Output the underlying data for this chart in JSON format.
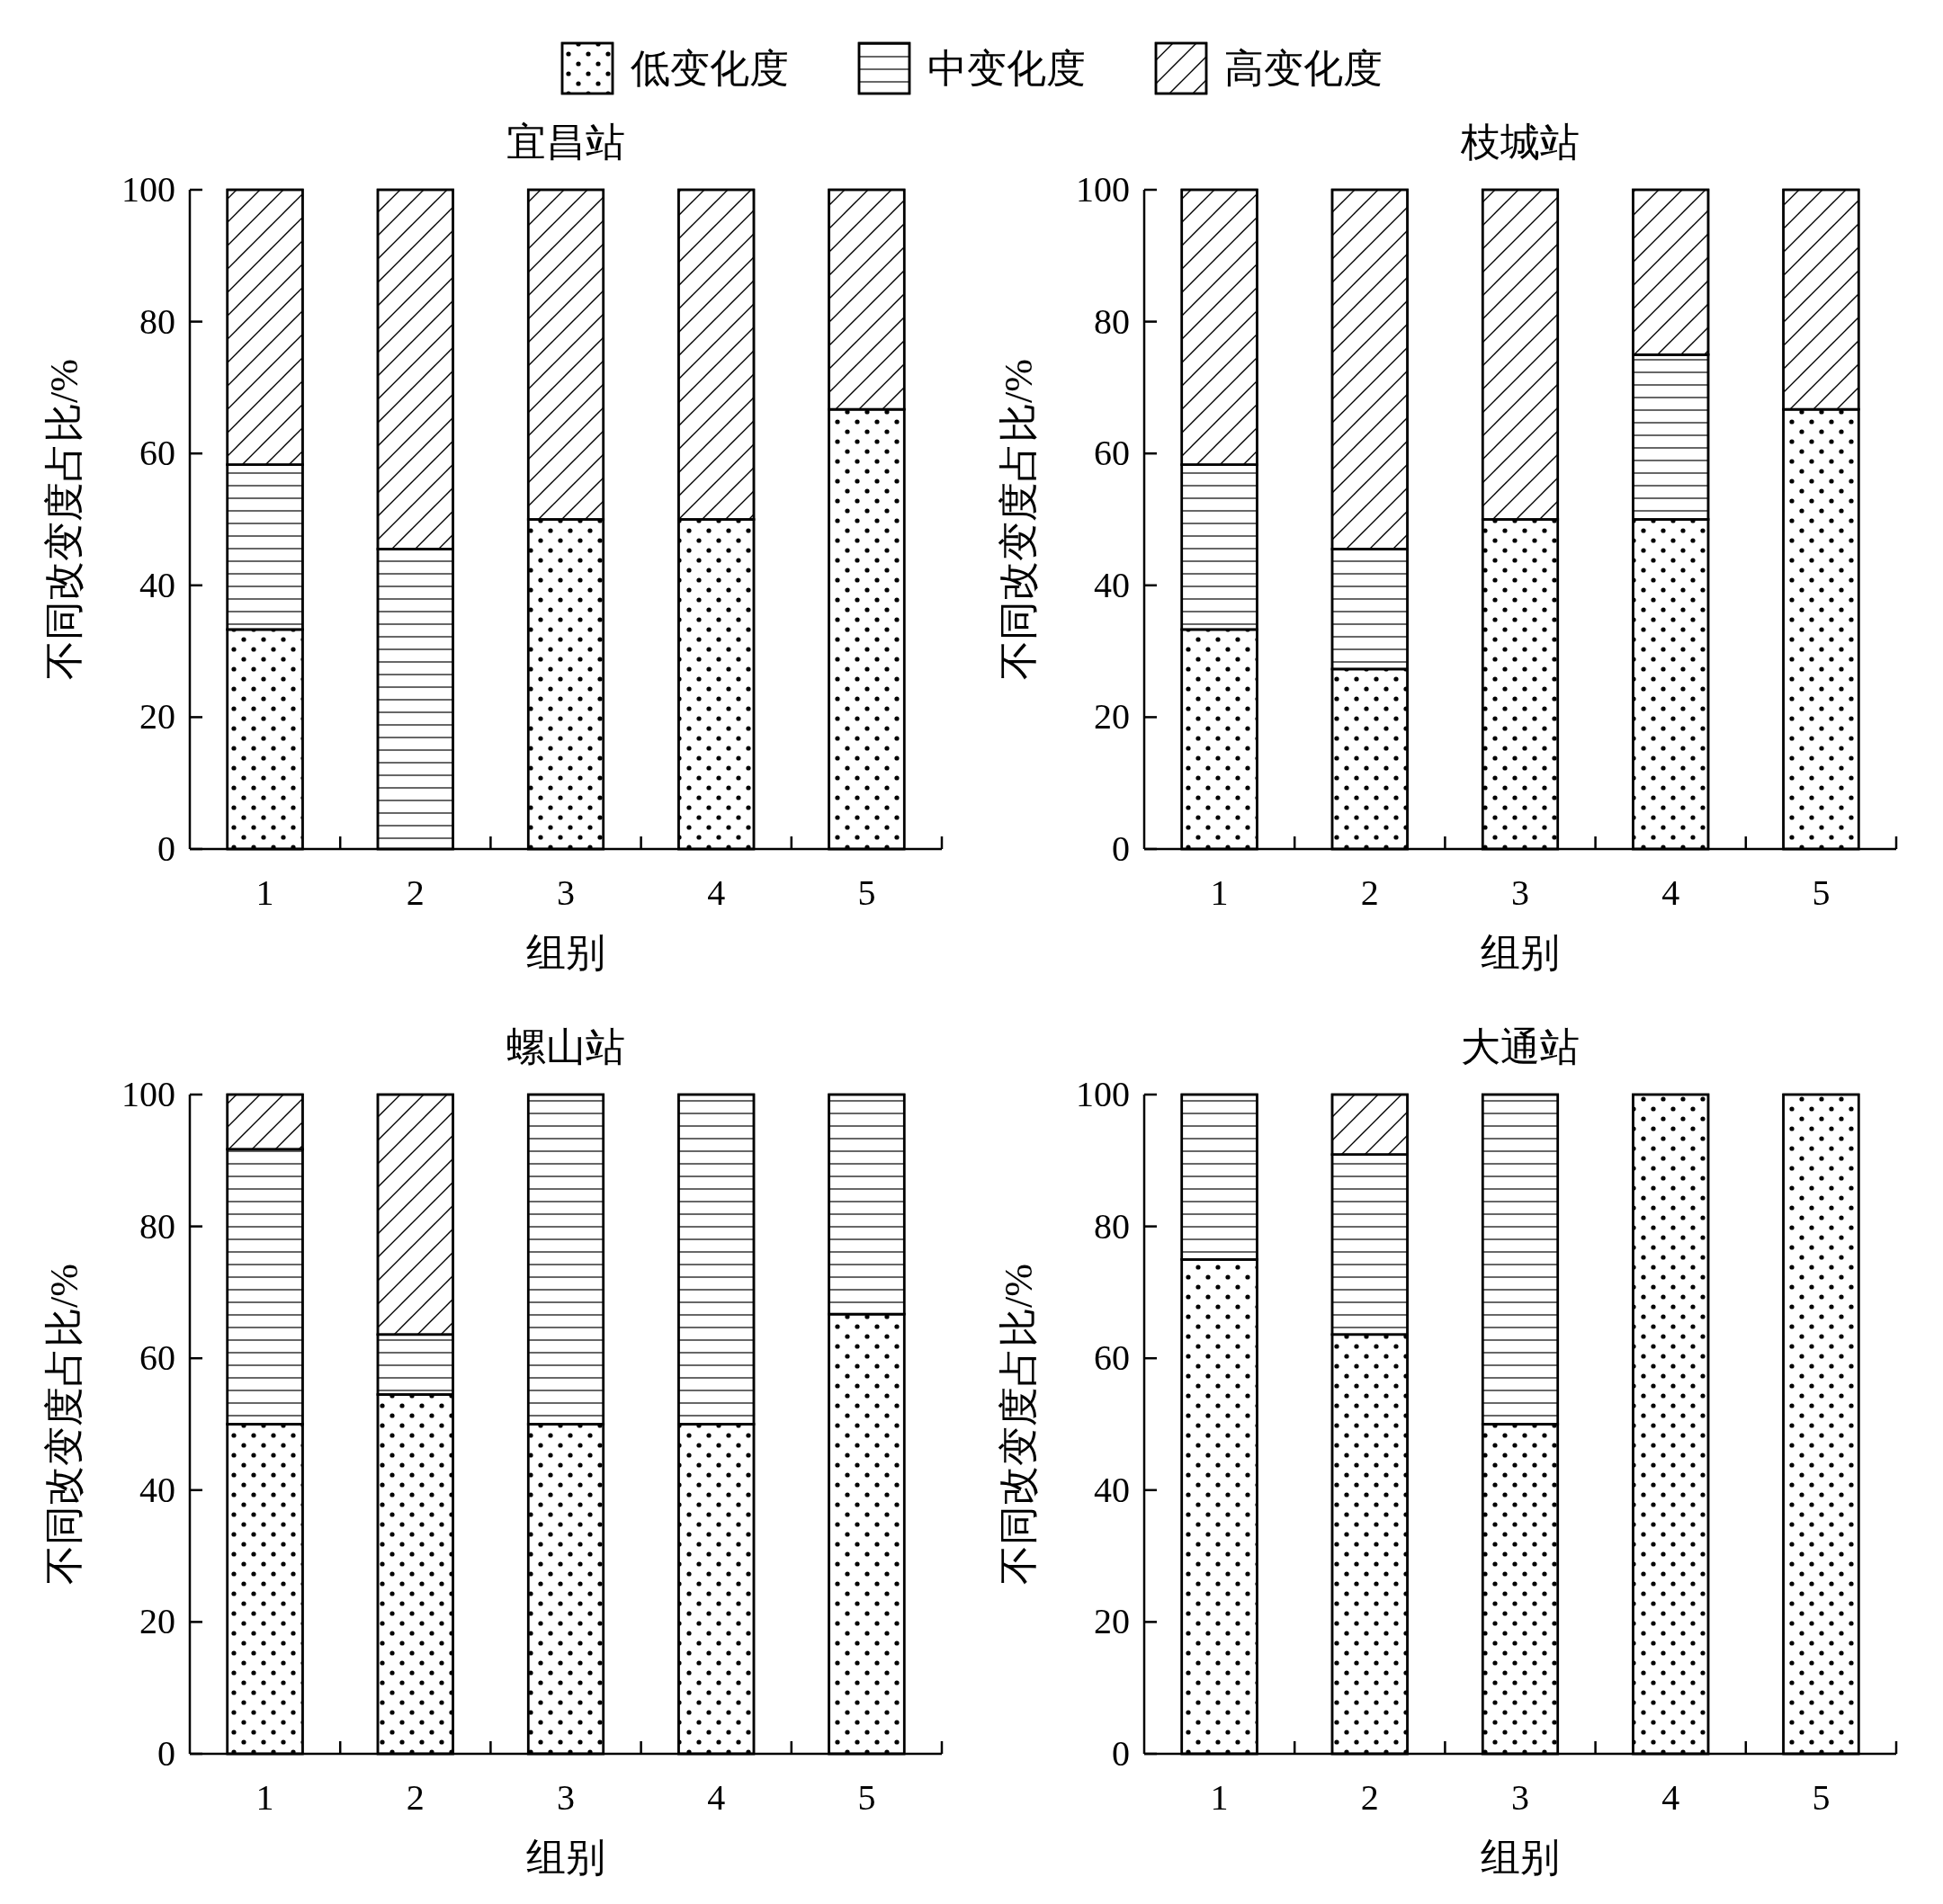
{
  "chart_data": [
    {
      "type": "bar",
      "stacked": true,
      "title": "宜昌站",
      "xlabel": "组别",
      "ylabel": "不同改变度占比/%",
      "categories": [
        "1",
        "2",
        "3",
        "4",
        "5"
      ],
      "ylim": [
        0,
        100
      ],
      "yticks": [
        0,
        20,
        40,
        60,
        80,
        100
      ],
      "legend": "top",
      "series": [
        {
          "name": "低变化度",
          "color": "#ffffff",
          "values": [
            33.3,
            0,
            50,
            50,
            66.7
          ]
        },
        {
          "name": "中变化度",
          "color": "#ffffff",
          "values": [
            25,
            45.5,
            0,
            0,
            0
          ]
        },
        {
          "name": "高变化度",
          "color": "#ffffff",
          "values": [
            41.7,
            54.5,
            50,
            50,
            33.3
          ]
        }
      ]
    },
    {
      "type": "bar",
      "stacked": true,
      "title": "枝城站",
      "xlabel": "组别",
      "ylabel": "不同改变度占比/%",
      "categories": [
        "1",
        "2",
        "3",
        "4",
        "5"
      ],
      "ylim": [
        0,
        100
      ],
      "yticks": [
        0,
        20,
        40,
        60,
        80,
        100
      ],
      "series": [
        {
          "color": "#ffffff",
          "values": [
            33.3,
            27.3,
            50,
            50,
            66.7
          ]
        },
        {
          "color": "#ffffff",
          "values": [
            25,
            18.2,
            0,
            25,
            0
          ]
        },
        {
          "color": "#ffffff",
          "values": [
            41.7,
            54.5,
            50,
            25,
            33.3
          ]
        }
      ]
    },
    {
      "type": "bar",
      "stacked": true,
      "title": "螺山站",
      "xlabel": "组别",
      "ylabel": "不同改变度占比/%",
      "categories": [
        "1",
        "2",
        "3",
        "4",
        "5"
      ],
      "ylim": [
        0,
        100
      ],
      "yticks": [
        0,
        20,
        40,
        60,
        80,
        100
      ],
      "series": [
        {
          "color": "#ffffff",
          "values": [
            50,
            54.5,
            50,
            50,
            66.7
          ]
        },
        {
          "color": "#ffffff",
          "values": [
            41.7,
            9.1,
            50,
            50,
            33.3
          ]
        },
        {
          "color": "#ffffff",
          "values": [
            8.3,
            36.4,
            0,
            0,
            0
          ]
        }
      ]
    },
    {
      "type": "bar",
      "stacked": true,
      "title": "大通站",
      "xlabel": "组别",
      "ylabel": "不同改变度占比/%",
      "categories": [
        "1",
        "2",
        "3",
        "4",
        "5"
      ],
      "ylim": [
        0,
        100
      ],
      "yticks": [
        0,
        20,
        40,
        60,
        80,
        100
      ],
      "series": [
        {
          "color": "#ffffff",
          "values": [
            75,
            63.6,
            50,
            100,
            100
          ]
        },
        {
          "color": "#ffffff",
          "values": [
            25,
            27.3,
            50,
            0,
            0
          ]
        },
        {
          "color": "#ffffff",
          "values": [
            0,
            9.1,
            0,
            0,
            0
          ]
        }
      ]
    }
  ]
}
